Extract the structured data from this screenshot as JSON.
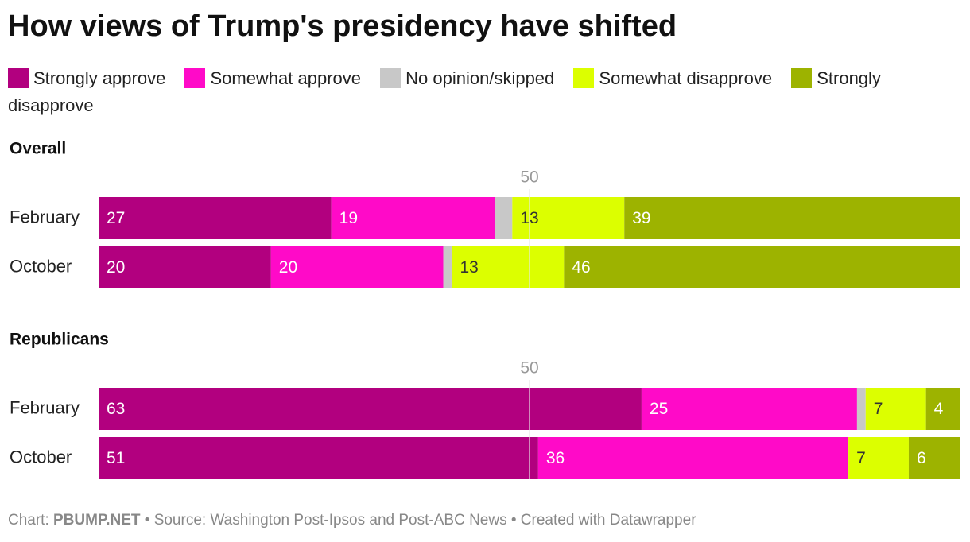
{
  "chart_data": {
    "type": "stacked_bar",
    "title": "How views of Trump's presidency have shifted",
    "series": [
      {
        "name": "Strongly approve",
        "color": "#b2007f",
        "label_color": "#ffffff",
        "show_labels": true
      },
      {
        "name": "Somewhat approve",
        "color": "#ff0ac8",
        "label_color": "#ffffff",
        "show_labels": true
      },
      {
        "name": "No opinion/skipped",
        "color": "#c8c8c8",
        "label_color": "#333333",
        "show_labels": false
      },
      {
        "name": "Somewhat disapprove",
        "color": "#dcff00",
        "label_color": "#333333",
        "show_labels": true
      },
      {
        "name": "Strongly disapprove",
        "color": "#9db300",
        "label_color": "#ffffff",
        "show_labels": true
      }
    ],
    "xlim": [
      0,
      100
    ],
    "xticks": [
      50
    ],
    "panels": [
      {
        "title": "Overall",
        "categories": [
          "February",
          "October"
        ],
        "values": [
          [
            27,
            20
          ],
          [
            19,
            20
          ],
          [
            2,
            1
          ],
          [
            13,
            13
          ],
          [
            39,
            46
          ]
        ]
      },
      {
        "title": "Republicans",
        "categories": [
          "February",
          "October"
        ],
        "values": [
          [
            63,
            51
          ],
          [
            25,
            36
          ],
          [
            1,
            0
          ],
          [
            7,
            7
          ],
          [
            4,
            6
          ]
        ]
      }
    ],
    "footer": {
      "prefix": "Chart:",
      "credit": "PBUMP.NET",
      "source": "• Source: Washington Post-Ipsos and Post-ABC News",
      "tool": "• Created with Datawrapper"
    }
  }
}
